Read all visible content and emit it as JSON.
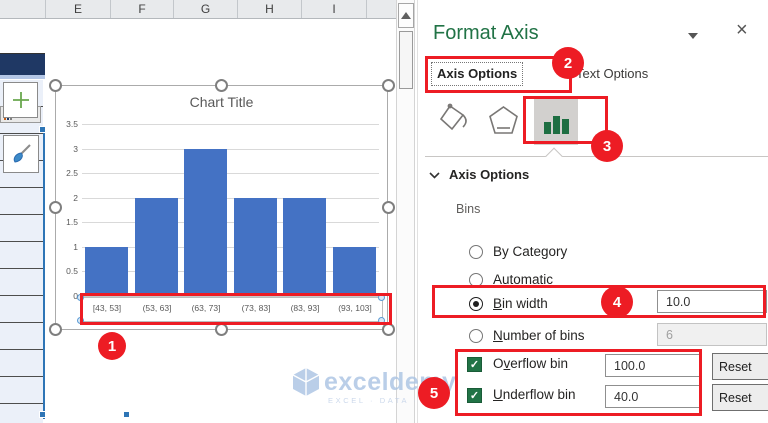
{
  "sheet": {
    "columns": [
      "E",
      "F",
      "G",
      "H",
      "I"
    ],
    "column_bounds": [
      45,
      110,
      173,
      237,
      301,
      366,
      396
    ]
  },
  "chart_buttons": {
    "add_icon": "plus-icon",
    "style_icon": "paintbrush-icon"
  },
  "chart_data": {
    "type": "bar",
    "title": "Chart Title",
    "categories": [
      "[43, 53]",
      "(53, 63]",
      "(63, 73]",
      "(73, 83]",
      "(83, 93]",
      "(93, 103]"
    ],
    "values": [
      1,
      2,
      3,
      2,
      2,
      1
    ],
    "y_ticks": [
      0,
      0.5,
      1,
      1.5,
      2,
      2.5,
      3,
      3.5
    ],
    "ylim": [
      0,
      3.5
    ],
    "xlabel": "",
    "ylabel": "",
    "grid": true,
    "legend": "none",
    "bar_color": "#4472c4"
  },
  "pane": {
    "title": "Format Axis",
    "tabs": [
      {
        "label": "Axis Options",
        "selected": true
      },
      {
        "label": "Text Options",
        "selected": false
      }
    ],
    "icon_tabs": [
      {
        "name": "fill-line-icon"
      },
      {
        "name": "effects-icon"
      },
      {
        "name": "axis-options-icon",
        "selected": true
      }
    ],
    "section_heading": "Axis Options",
    "bins_label": "Bins",
    "rows": [
      {
        "type": "radio",
        "label": "By Category",
        "key": "g",
        "checked": false
      },
      {
        "type": "radio",
        "label": "Automatic",
        "checked": false
      },
      {
        "type": "radio",
        "label": "Bin width",
        "key": "B",
        "checked": true,
        "value": "10.0"
      },
      {
        "type": "radio",
        "label": "Number of bins",
        "key": "N",
        "checked": false,
        "value": "6",
        "disabled": true
      },
      {
        "type": "checkbox",
        "label": "Overflow bin",
        "key": "v",
        "checked": true,
        "value": "100.0",
        "button": "Reset"
      },
      {
        "type": "checkbox",
        "label": "Underflow bin",
        "key": "U",
        "checked": true,
        "value": "40.0",
        "button": "Reset"
      }
    ],
    "close_glyph": "×"
  },
  "watermark": {
    "brand": "exceldemy",
    "tagline": "EXCEL · DATA · BI"
  },
  "annotations": {
    "color": "#ed1c24",
    "items": [
      {
        "label": "1"
      },
      {
        "label": "2"
      },
      {
        "label": "3"
      },
      {
        "label": "4"
      },
      {
        "label": "5"
      }
    ]
  },
  "colors": {
    "bar_blue": "#4472c4",
    "excel_green": "#217346",
    "annotation_red": "#ed1c24",
    "selection_blue": "#2e75b6"
  }
}
